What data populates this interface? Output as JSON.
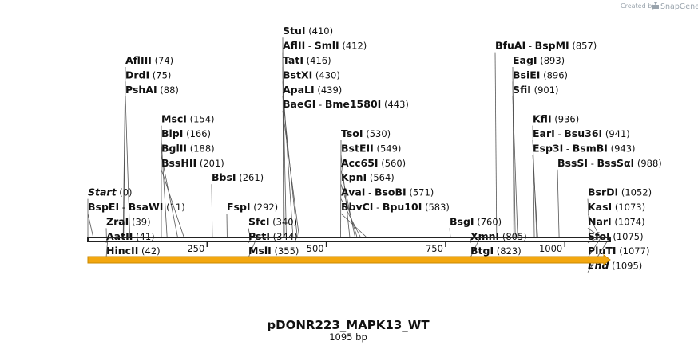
{
  "map": {
    "name": "pDONR223_MAPK13_WT",
    "length_label": "1095 bp",
    "length_bp": 1095,
    "credit_prefix": "Created by",
    "credit_brand": "SnapGene",
    "colors": {
      "backbone": "#222222",
      "feature_fill": "#f3a70f",
      "feature_line": "#c98800",
      "text": "#111111"
    }
  },
  "ticks": [
    {
      "bp": 250,
      "label": "250"
    },
    {
      "bp": 500,
      "label": "500"
    },
    {
      "bp": 750,
      "label": "750"
    },
    {
      "bp": 1000,
      "label": "1000"
    }
  ],
  "sites": [
    {
      "names": [
        "AflIII"
      ],
      "pos": "(74)",
      "bp": 74,
      "row": 0,
      "col": 0
    },
    {
      "names": [
        "DrdI"
      ],
      "pos": "(75)",
      "bp": 75,
      "row": 1,
      "col": 0
    },
    {
      "names": [
        "PshAI"
      ],
      "pos": "(88)",
      "bp": 88,
      "row": 2,
      "col": 0
    },
    {
      "names": [
        "MscI"
      ],
      "pos": "(154)",
      "bp": 154,
      "row": 4,
      "col": 1
    },
    {
      "names": [
        "BlpI"
      ],
      "pos": "(166)",
      "bp": 166,
      "row": 5,
      "col": 1
    },
    {
      "names": [
        "BglII"
      ],
      "pos": "(188)",
      "bp": 188,
      "row": 6,
      "col": 1
    },
    {
      "names": [
        "BssHII"
      ],
      "pos": "(201)",
      "bp": 201,
      "row": 7,
      "col": 1
    },
    {
      "names": [
        "Start"
      ],
      "pos": "(0)",
      "bp": 0,
      "row": 9,
      "col": 2,
      "italic": true
    },
    {
      "names": [
        "BspEI",
        "BsaWI"
      ],
      "pos": "(11)",
      "bp": 11,
      "row": 10,
      "col": 2
    },
    {
      "names": [
        "ZraI"
      ],
      "pos": "(39)",
      "bp": 39,
      "row": 11,
      "col": 3
    },
    {
      "names": [
        "AatII"
      ],
      "pos": "(41)",
      "bp": 41,
      "row": 12,
      "col": 3
    },
    {
      "names": [
        "HincII"
      ],
      "pos": "(42)",
      "bp": 42,
      "row": 13,
      "col": 3
    },
    {
      "names": [
        "BbsI"
      ],
      "pos": "(261)",
      "bp": 261,
      "row": 8,
      "col": 4
    },
    {
      "names": [
        "FspI"
      ],
      "pos": "(292)",
      "bp": 292,
      "row": 10,
      "col": 5
    },
    {
      "names": [
        "SfcI"
      ],
      "pos": "(340)",
      "bp": 340,
      "row": 11,
      "col": 6
    },
    {
      "names": [
        "PstI"
      ],
      "pos": "(344)",
      "bp": 344,
      "row": 12,
      "col": 6
    },
    {
      "names": [
        "MslI"
      ],
      "pos": "(355)",
      "bp": 355,
      "row": 13,
      "col": 6
    },
    {
      "names": [
        "StuI"
      ],
      "pos": "(410)",
      "bp": 410,
      "row": -2,
      "col": 7
    },
    {
      "names": [
        "AflII",
        "SmlI"
      ],
      "pos": "(412)",
      "bp": 412,
      "row": -1,
      "col": 7
    },
    {
      "names": [
        "TatI"
      ],
      "pos": "(416)",
      "bp": 416,
      "row": 0,
      "col": 7
    },
    {
      "names": [
        "BstXI"
      ],
      "pos": "(430)",
      "bp": 430,
      "row": 1,
      "col": 7
    },
    {
      "names": [
        "ApaLI"
      ],
      "pos": "(439)",
      "bp": 439,
      "row": 2,
      "col": 7
    },
    {
      "names": [
        "BaeGI",
        "Bme1580I"
      ],
      "pos": "(443)",
      "bp": 443,
      "row": 3,
      "col": 7
    },
    {
      "names": [
        "TsoI"
      ],
      "pos": "(530)",
      "bp": 530,
      "row": 5,
      "col": 8
    },
    {
      "names": [
        "BstEII"
      ],
      "pos": "(549)",
      "bp": 549,
      "row": 6,
      "col": 8
    },
    {
      "names": [
        "Acc65I"
      ],
      "pos": "(560)",
      "bp": 560,
      "row": 7,
      "col": 8
    },
    {
      "names": [
        "KpnI"
      ],
      "pos": "(564)",
      "bp": 564,
      "row": 8,
      "col": 8
    },
    {
      "names": [
        "AvaI",
        "BsoBI"
      ],
      "pos": "(571)",
      "bp": 571,
      "row": 9,
      "col": 8
    },
    {
      "names": [
        "BbvCI",
        "Bpu10I"
      ],
      "pos": "(583)",
      "bp": 583,
      "row": 10,
      "col": 8
    },
    {
      "names": [
        "BsgI"
      ],
      "pos": "(760)",
      "bp": 760,
      "row": 11,
      "col": 9
    },
    {
      "names": [
        "XmnI"
      ],
      "pos": "(805)",
      "bp": 805,
      "row": 12,
      "col": 10
    },
    {
      "names": [
        "BtgI"
      ],
      "pos": "(823)",
      "bp": 823,
      "row": 13,
      "col": 10
    },
    {
      "names": [
        "BfuAI",
        "BspMI"
      ],
      "pos": "(857)",
      "bp": 857,
      "row": -1,
      "col": 11
    },
    {
      "names": [
        "EagI"
      ],
      "pos": "(893)",
      "bp": 893,
      "row": 0,
      "col": 12
    },
    {
      "names": [
        "BsiEI"
      ],
      "pos": "(896)",
      "bp": 896,
      "row": 1,
      "col": 12
    },
    {
      "names": [
        "SfiI"
      ],
      "pos": "(901)",
      "bp": 901,
      "row": 2,
      "col": 12
    },
    {
      "names": [
        "KflI"
      ],
      "pos": "(936)",
      "bp": 936,
      "row": 4,
      "col": 13
    },
    {
      "names": [
        "EarI",
        "Bsu36I"
      ],
      "pos": "(941)",
      "bp": 941,
      "row": 5,
      "col": 13
    },
    {
      "names": [
        "Esp3I",
        "BsmBI"
      ],
      "pos": "(943)",
      "bp": 943,
      "row": 6,
      "col": 13
    },
    {
      "names": [
        "BssSI",
        "BssSαI"
      ],
      "pos": "(988)",
      "bp": 988,
      "row": 7,
      "col": 14
    },
    {
      "names": [
        "BsrDI"
      ],
      "pos": "(1052)",
      "bp": 1052,
      "row": 9,
      "col": 15
    },
    {
      "names": [
        "KasI"
      ],
      "pos": "(1073)",
      "bp": 1073,
      "row": 10,
      "col": 15
    },
    {
      "names": [
        "NarI"
      ],
      "pos": "(1074)",
      "bp": 1074,
      "row": 11,
      "col": 15
    },
    {
      "names": [
        "SfoI"
      ],
      "pos": "(1075)",
      "bp": 1075,
      "row": 12,
      "col": 15
    },
    {
      "names": [
        "PluTI"
      ],
      "pos": "(1077)",
      "bp": 1077,
      "row": 13,
      "col": 15
    },
    {
      "names": [
        "End"
      ],
      "pos": "(1095)",
      "bp": 1095,
      "row": 14,
      "col": 15,
      "italic": true
    }
  ]
}
